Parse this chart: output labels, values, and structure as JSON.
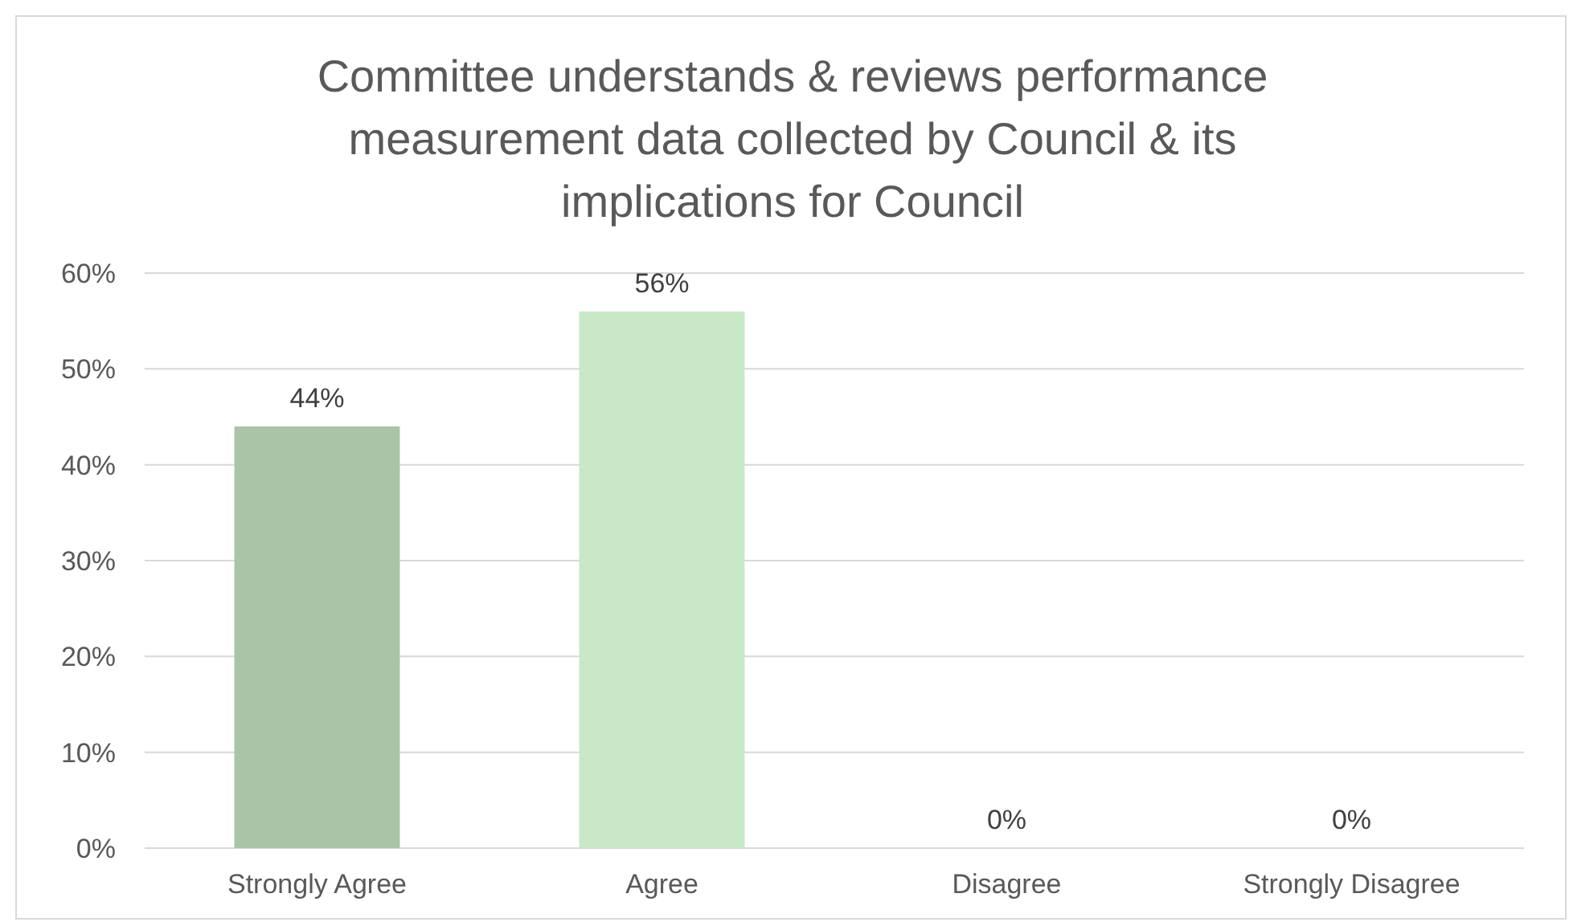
{
  "chart_data": {
    "type": "bar",
    "title": "Committee understands & reviews performance measurement data collected by Council & its implications for Council",
    "categories": [
      "Strongly Agree",
      "Agree",
      "Disagree",
      "Strongly Disagree"
    ],
    "values": [
      44,
      56,
      0,
      0
    ],
    "colors": [
      "#a9c4a7",
      "#c9e8c8",
      "#c9e8c8",
      "#c9e8c8"
    ],
    "value_labels": [
      "44%",
      "56%",
      "0%",
      "0%"
    ],
    "ylim": [
      0,
      60
    ],
    "yticks": [
      {
        "value": 0,
        "label": "0%"
      },
      {
        "value": 10,
        "label": "10%"
      },
      {
        "value": 20,
        "label": "20%"
      },
      {
        "value": 30,
        "label": "30%"
      },
      {
        "value": 40,
        "label": "40%"
      },
      {
        "value": 50,
        "label": "50%"
      },
      {
        "value": 60,
        "label": "60%"
      }
    ],
    "grid": "y"
  }
}
